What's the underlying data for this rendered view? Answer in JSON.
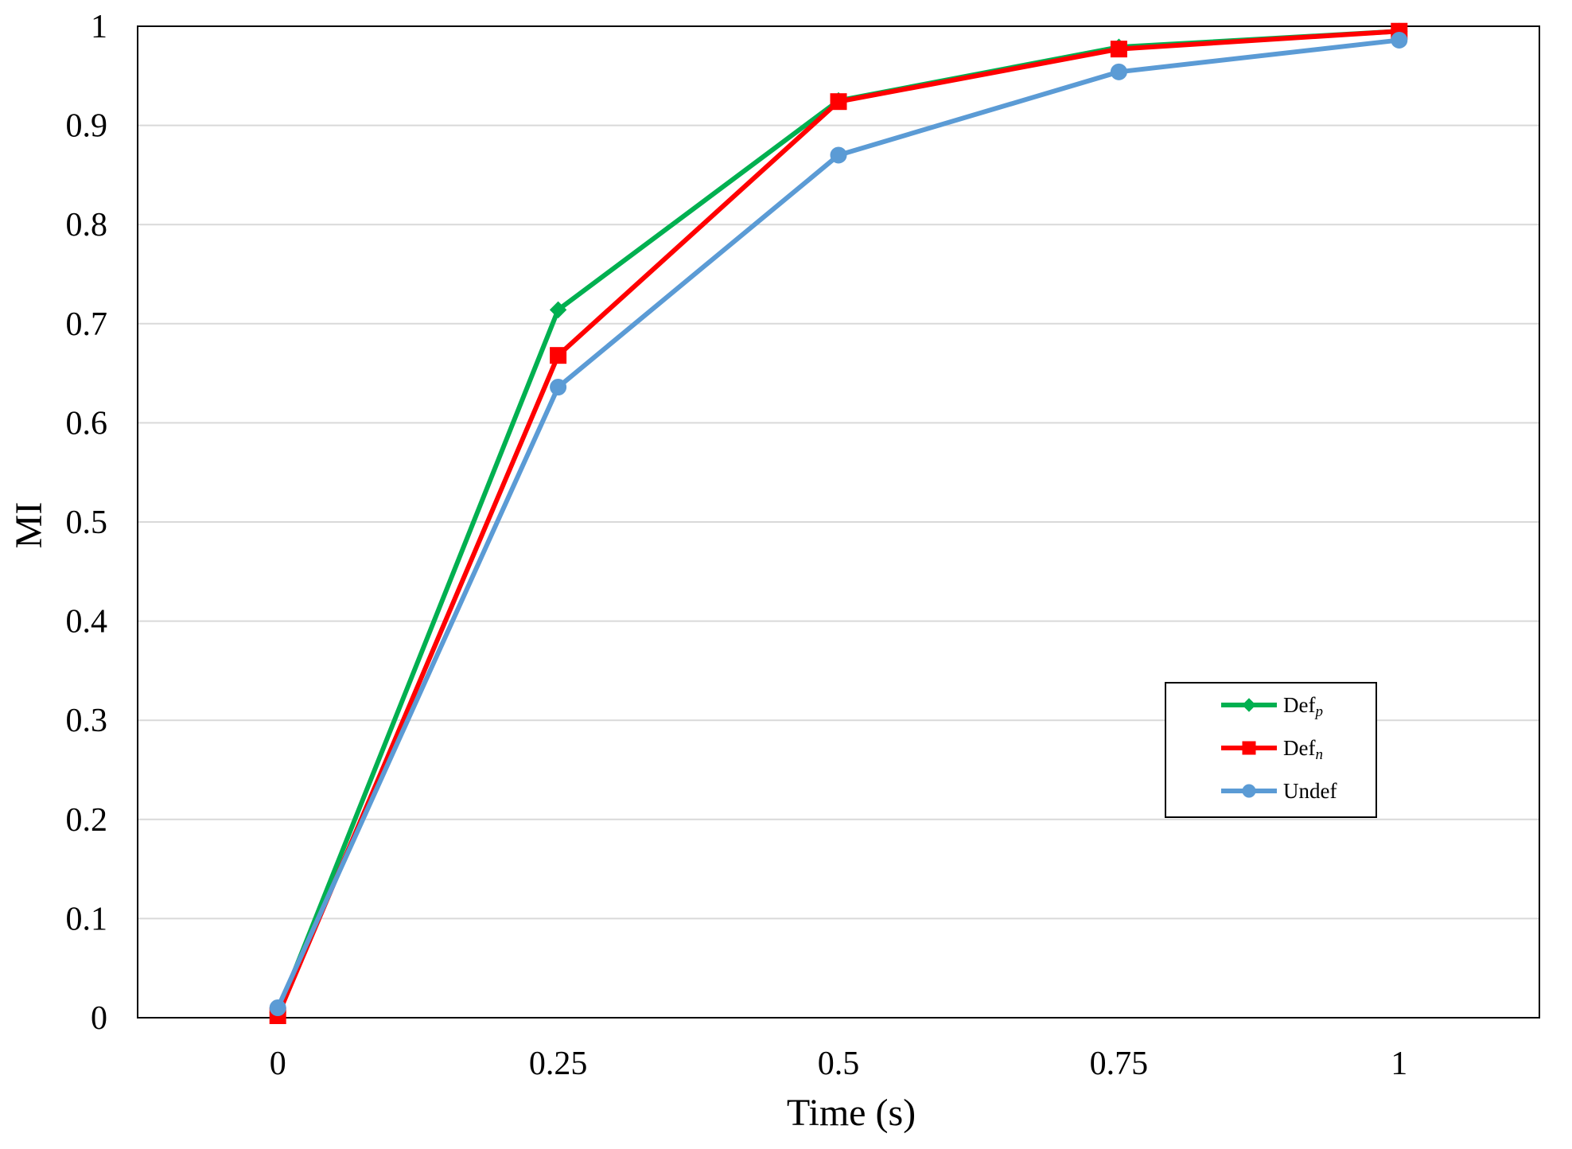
{
  "chart_data": {
    "type": "line",
    "title": "",
    "xlabel": "Time (s)",
    "ylabel": "MI",
    "x_categories": [
      "0",
      "0.25",
      "0.5",
      "0.75",
      "1"
    ],
    "x_values": [
      0,
      0.25,
      0.5,
      0.75,
      1
    ],
    "xlim": [
      -0.125,
      1.125
    ],
    "ylim": [
      0,
      1
    ],
    "yticks": [
      "0",
      "0.1",
      "0.2",
      "0.3",
      "0.4",
      "0.5",
      "0.6",
      "0.7",
      "0.8",
      "0.9",
      "1"
    ],
    "grid": true,
    "legend_position": "right, lower-middle",
    "series": [
      {
        "name": "Def",
        "subscript": "p",
        "color": "#00b050",
        "marker": "diamond",
        "values": [
          0.005,
          0.714,
          0.925,
          0.979,
          0.995
        ]
      },
      {
        "name": "Def",
        "subscript": "n",
        "color": "#ff0000",
        "marker": "square",
        "values": [
          0.002,
          0.668,
          0.924,
          0.977,
          0.995
        ]
      },
      {
        "name": "Undef",
        "subscript": "",
        "color": "#5b9bd5",
        "marker": "circle",
        "values": [
          0.01,
          0.636,
          0.87,
          0.954,
          0.986
        ]
      }
    ]
  }
}
